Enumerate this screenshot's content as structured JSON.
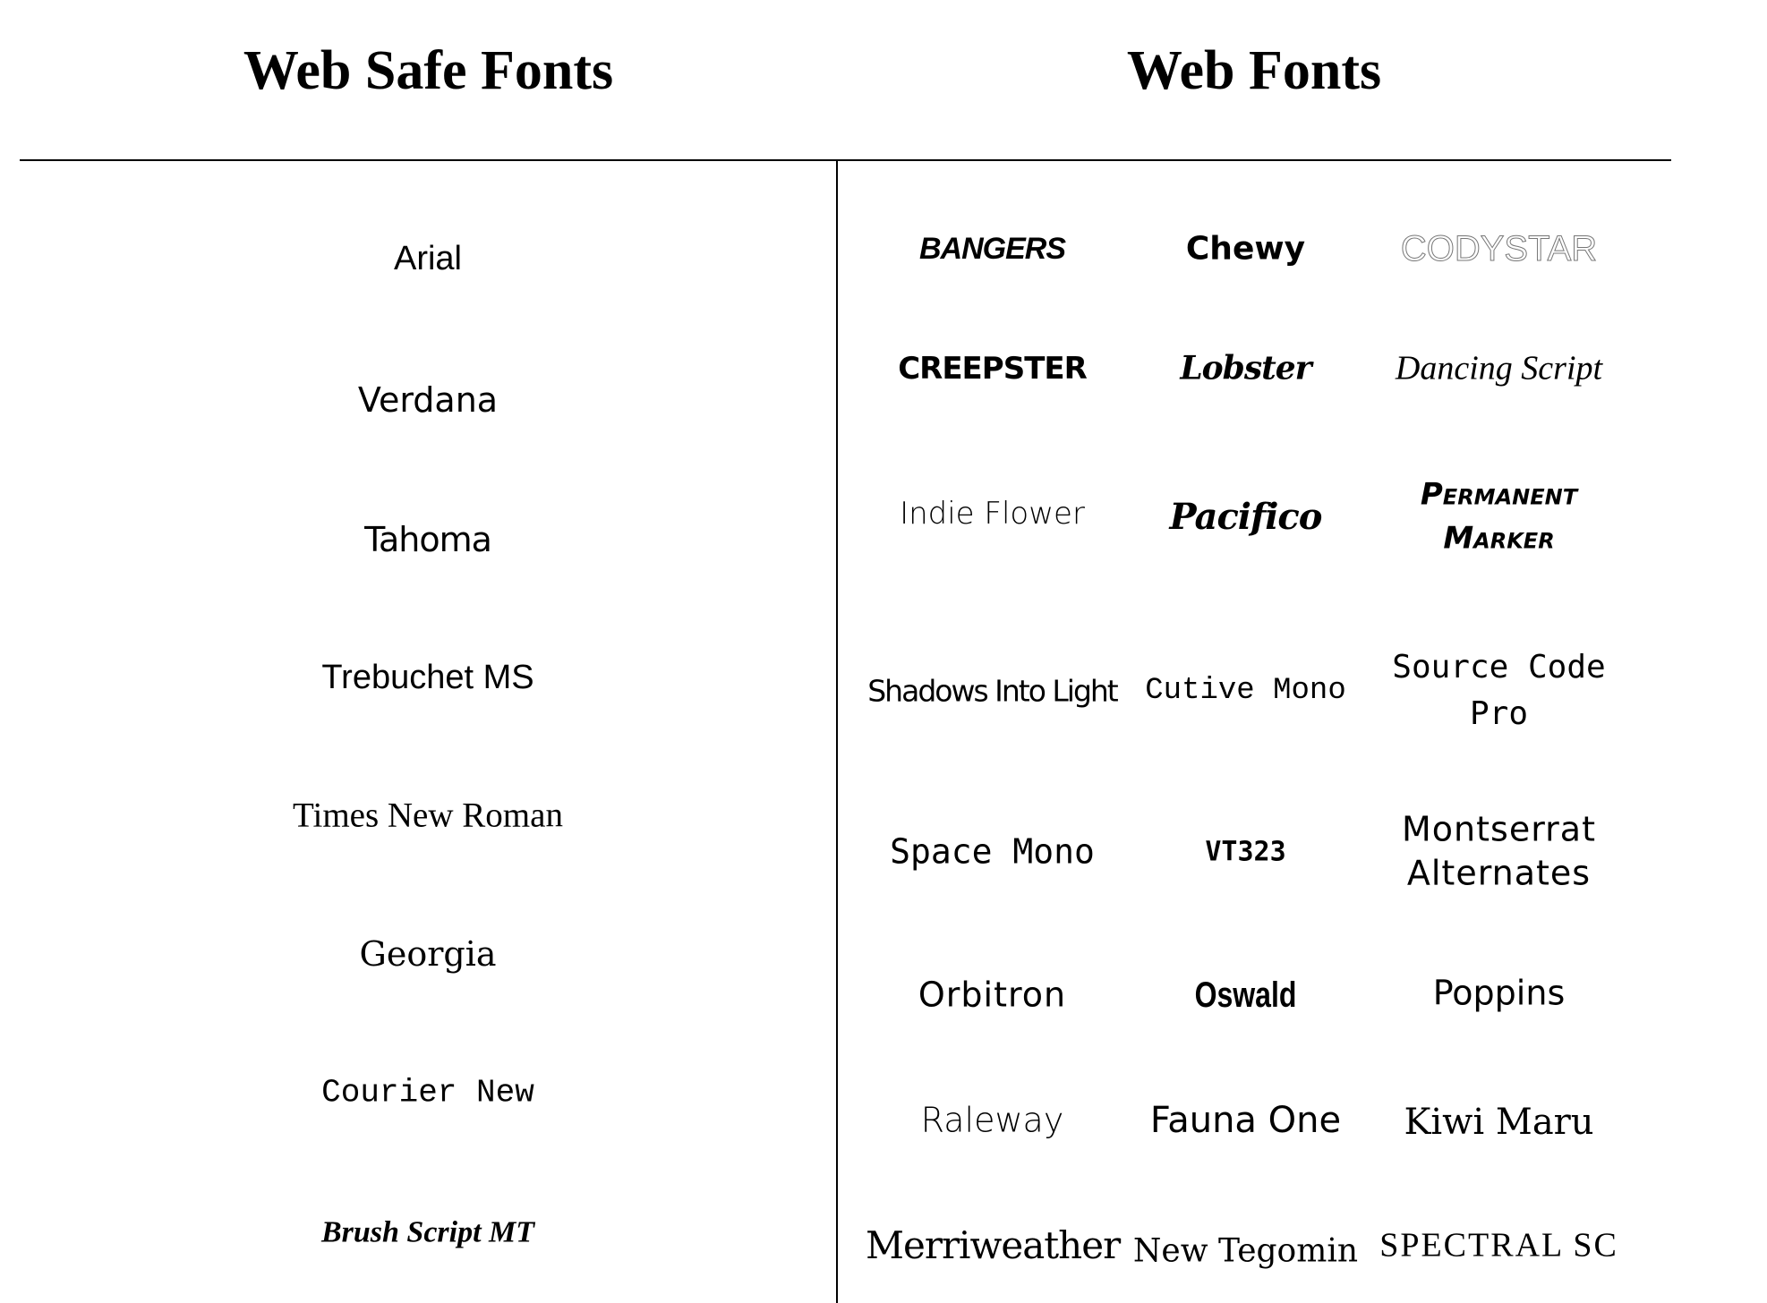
{
  "headings": {
    "web_safe": "Web Safe Fonts",
    "web_fonts": "Web Fonts"
  },
  "web_safe_fonts": [
    "Arial",
    "Verdana",
    "Tahoma",
    "Trebuchet MS",
    "Times New Roman",
    "Georgia",
    "Courier New",
    "Brush Script MT"
  ],
  "web_fonts": [
    [
      "BANGERS",
      "Chewy",
      "CODYSTAR"
    ],
    [
      "CREEPSTER",
      "Lobster",
      "Dancing Script"
    ],
    [
      "Indie Flower",
      "Pacifico",
      "Permanent Marker"
    ],
    [
      "Shadows Into Light",
      "Cutive Mono",
      "Source Code Pro"
    ],
    [
      "Space Mono",
      "VT323",
      "Montserrat Alternates"
    ],
    [
      "Orbitron",
      "Oswald",
      "Poppins"
    ],
    [
      "Raleway",
      "Fauna One",
      "Kiwi Maru"
    ],
    [
      "Merriweather",
      "New Tegomin",
      "SPECTRAL SC"
    ]
  ]
}
